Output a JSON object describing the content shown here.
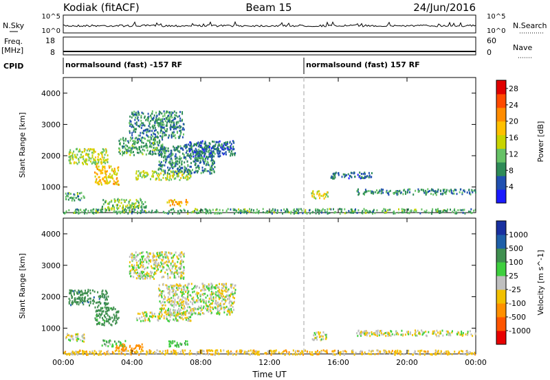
{
  "header": {
    "station": "Kodiak (fitACF)",
    "beam": "Beam 15",
    "date": "24/Jun/2016"
  },
  "strips": {
    "nsky_label": "N.Sky",
    "nsky_ticks": [
      "10^5",
      "10^0"
    ],
    "nsearch_label": "N.Search",
    "nsearch_ticks": [
      "10^5",
      "10^0"
    ],
    "freq_label": "Freq.",
    "freq_unit": "[MHz]",
    "freq_ticks": [
      "18",
      "8"
    ],
    "nave_label": "Nave",
    "nave_ticks": [
      "60",
      "0"
    ],
    "cpid_label": "CPID",
    "cpid_segments": [
      {
        "start_hour": 0.0,
        "text": "normalsound (fast) -157 RF"
      },
      {
        "start_hour": 14.0,
        "text": "normalsound (fast) 157 RF"
      }
    ]
  },
  "chart_data": [
    {
      "type": "heatmap",
      "panel": "power",
      "xlabel": "",
      "ylabel": "Slant Range [km]",
      "x_ticks": [
        "00:00",
        "04:00",
        "08:00",
        "12:00",
        "16:00",
        "20:00",
        "00:00"
      ],
      "xlim_hours": [
        0,
        24
      ],
      "y_ticks": [
        "1000",
        "2000",
        "3000",
        "4000"
      ],
      "ylim_km": [
        180,
        4500
      ],
      "mode_change_hour": 14.0,
      "colorbar": {
        "label": "Power [dB]",
        "ticks": [
          "4",
          "8",
          "12",
          "16",
          "20",
          "24",
          "28"
        ],
        "range": [
          0,
          30
        ]
      },
      "regions": [
        {
          "t0": 0.1,
          "t1": 1.2,
          "r0": 600,
          "r1": 850,
          "value": 10
        },
        {
          "t0": 0.3,
          "t1": 2.6,
          "r0": 1750,
          "r1": 2250,
          "value": 14
        },
        {
          "t0": 1.8,
          "t1": 3.2,
          "r0": 1100,
          "r1": 1700,
          "value": 18
        },
        {
          "t0": 2.2,
          "t1": 4.8,
          "r0": 330,
          "r1": 650,
          "value": 12
        },
        {
          "t0": 3.2,
          "t1": 5.8,
          "r0": 2050,
          "r1": 2600,
          "value": 10
        },
        {
          "t0": 4.2,
          "t1": 7.4,
          "r0": 1250,
          "r1": 1550,
          "value": 14
        },
        {
          "t0": 5.5,
          "t1": 8.8,
          "r0": 1450,
          "r1": 2350,
          "value": 8
        },
        {
          "t0": 6.0,
          "t1": 7.2,
          "r0": 420,
          "r1": 620,
          "value": 20
        },
        {
          "t0": 3.8,
          "t1": 7.0,
          "r0": 2600,
          "r1": 3450,
          "value": 8
        },
        {
          "t0": 7.0,
          "t1": 10.0,
          "r0": 2000,
          "r1": 2500,
          "value": 6
        },
        {
          "t0": 14.4,
          "t1": 15.4,
          "r0": 650,
          "r1": 900,
          "value": 16
        },
        {
          "t0": 15.5,
          "t1": 18.0,
          "r0": 1300,
          "r1": 1500,
          "value": 6
        },
        {
          "t0": 17.0,
          "t1": 24.0,
          "r0": 780,
          "r1": 960,
          "value": 8
        },
        {
          "t0": 0.0,
          "t1": 24.0,
          "r0": 180,
          "r1": 330,
          "value": 10
        }
      ]
    },
    {
      "type": "heatmap",
      "panel": "velocity",
      "xlabel": "Time UT",
      "ylabel": "Slant Range [km]",
      "x_ticks": [
        "00:00",
        "04:00",
        "08:00",
        "12:00",
        "16:00",
        "20:00",
        "00:00"
      ],
      "xlim_hours": [
        0,
        24
      ],
      "y_ticks": [
        "1000",
        "2000",
        "3000",
        "4000"
      ],
      "ylim_km": [
        180,
        4500
      ],
      "mode_change_hour": 14.0,
      "colorbar": {
        "label": "Velocity [m s^-1]",
        "ticks": [
          "1000",
          "500",
          "100",
          "25",
          "-25",
          "-100",
          "-500",
          "-1000"
        ]
      },
      "regions": [
        {
          "t0": 0.1,
          "t1": 1.2,
          "r0": 600,
          "r1": 850,
          "value": 0
        },
        {
          "t0": 0.3,
          "t1": 2.6,
          "r0": 1750,
          "r1": 2250,
          "value": 450
        },
        {
          "t0": 1.8,
          "t1": 3.2,
          "r0": 1100,
          "r1": 1700,
          "value": 150
        },
        {
          "t0": 2.2,
          "t1": 3.6,
          "r0": 450,
          "r1": 650,
          "value": 60
        },
        {
          "t0": 3.0,
          "t1": 4.6,
          "r0": 300,
          "r1": 520,
          "value": -200
        },
        {
          "t0": 4.2,
          "t1": 7.4,
          "r0": 1250,
          "r1": 1550,
          "value": 0
        },
        {
          "t0": 5.5,
          "t1": 10.0,
          "r0": 1450,
          "r1": 2450,
          "value": 0
        },
        {
          "t0": 6.0,
          "t1": 7.2,
          "r0": 420,
          "r1": 620,
          "value": 60
        },
        {
          "t0": 3.8,
          "t1": 7.0,
          "r0": 2600,
          "r1": 3450,
          "value": 0
        },
        {
          "t0": 14.4,
          "t1": 15.4,
          "r0": 650,
          "r1": 900,
          "value": 0
        },
        {
          "t0": 17.0,
          "t1": 24.0,
          "r0": 780,
          "r1": 960,
          "value": 0
        },
        {
          "t0": 0.0,
          "t1": 24.0,
          "r0": 180,
          "r1": 330,
          "value": -60
        }
      ]
    }
  ],
  "colors": {
    "power_scale": [
      "#1a1aff",
      "#2050b0",
      "#2e8b57",
      "#66c266",
      "#c8d400",
      "#ffc000",
      "#ff8c00",
      "#ff4a00",
      "#e00000"
    ],
    "velocity_scale": [
      "#e80000",
      "#ff5500",
      "#ff9000",
      "#f2c000",
      "#bfbfbf",
      "#3ecf3e",
      "#3f8f4f",
      "#1e5fa8",
      "#1830a0"
    ],
    "mode_line": "#c0c0c0"
  }
}
